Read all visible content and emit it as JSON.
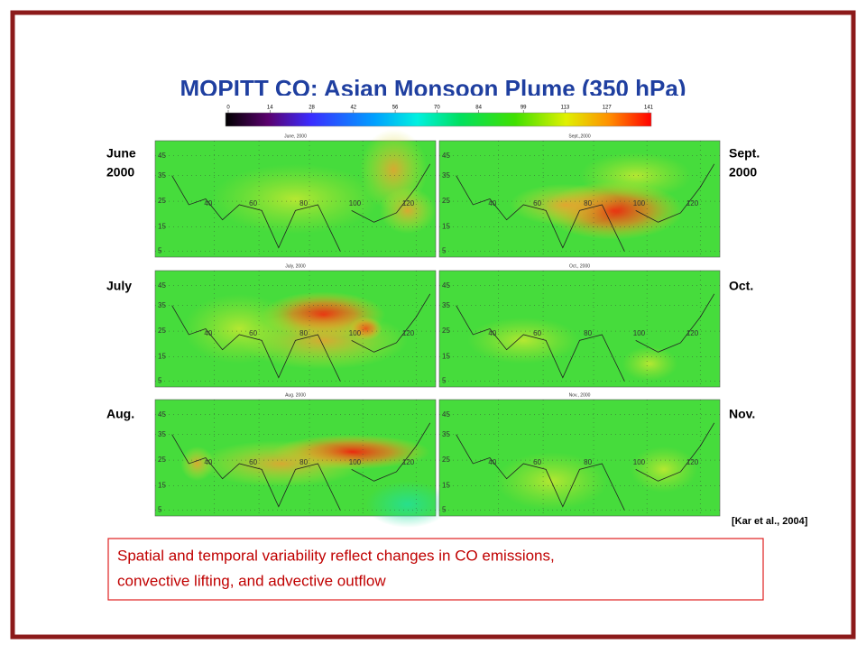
{
  "slide": {
    "title": "MOPITT CO: Asian Monsoon Plume (350 hPa)",
    "colorbar_ticks": [
      0,
      14,
      28,
      42,
      56,
      70,
      84,
      99,
      113,
      127,
      141
    ],
    "lat_labels": [
      45,
      35,
      25,
      15,
      5
    ],
    "lon_labels": [
      40,
      60,
      80,
      100,
      120
    ],
    "panels": [
      {
        "title": "June, 2000",
        "label": [
          "June",
          "2000"
        ]
      },
      {
        "title": "Sept.,2000",
        "label": [
          "Sept.",
          "2000"
        ]
      },
      {
        "title": "July, 2000",
        "label": [
          "July"
        ]
      },
      {
        "title": "Oct., 2000",
        "label": [
          "Oct."
        ]
      },
      {
        "title": "Aug. 2000",
        "label": [
          "Aug."
        ]
      },
      {
        "title": "Nov., 2000",
        "label": [
          "Nov."
        ]
      }
    ],
    "citation": "[Kar et al., 2004]",
    "caption": [
      "Spatial and temporal variability reflect changes in CO emissions,",
      "convective lifting, and advective outflow"
    ]
  }
}
